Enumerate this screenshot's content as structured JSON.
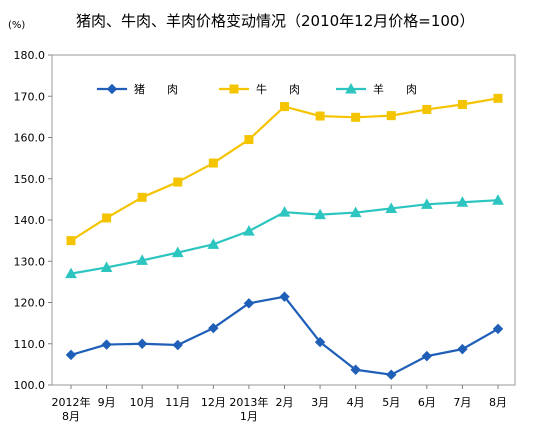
{
  "chart_data": {
    "type": "line",
    "title": "猪肉、牛肉、羊肉价格变动情况（2010年12月价格=100）",
    "unit_label": "(%)",
    "categories": [
      [
        "2012年",
        "8月"
      ],
      [
        "9月"
      ],
      [
        "10月"
      ],
      [
        "11月"
      ],
      [
        "12月"
      ],
      [
        "2013年",
        "1月"
      ],
      [
        "2月"
      ],
      [
        "3月"
      ],
      [
        "4月"
      ],
      [
        "5月"
      ],
      [
        "6月"
      ],
      [
        "7月"
      ],
      [
        "8月"
      ]
    ],
    "ylim": [
      100,
      180
    ],
    "yticks": [
      "100.0",
      "110.0",
      "120.0",
      "130.0",
      "140.0",
      "150.0",
      "160.0",
      "170.0",
      "180.0"
    ],
    "legend_position": "top",
    "series": [
      {
        "name": "猪　　肉",
        "color": "#1F5FB8",
        "marker": "diamond",
        "values": [
          107.3,
          109.8,
          110.0,
          109.7,
          113.8,
          119.8,
          121.4,
          110.4,
          103.7,
          102.5,
          107.0,
          108.7,
          113.6
        ]
      },
      {
        "name": "牛　　肉",
        "color": "#F5C400",
        "marker": "square",
        "values": [
          135.0,
          140.5,
          145.5,
          149.2,
          153.8,
          159.5,
          167.5,
          165.2,
          164.9,
          165.3,
          166.8,
          168.0,
          169.5
        ]
      },
      {
        "name": "羊　　肉",
        "color": "#2CC5C0",
        "marker": "triangle",
        "values": [
          127.0,
          128.5,
          130.2,
          132.1,
          134.1,
          137.3,
          141.9,
          141.3,
          141.8,
          142.8,
          143.8,
          144.3,
          144.8
        ]
      }
    ]
  }
}
